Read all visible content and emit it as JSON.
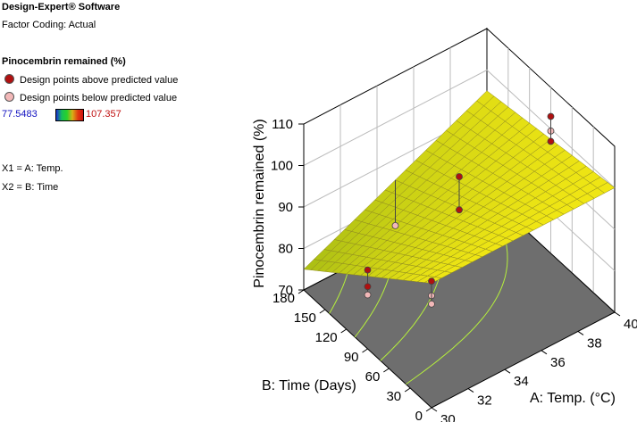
{
  "info": {
    "software": "Design-Expert® Software",
    "factor_coding": "Factor Coding: Actual",
    "response": "Pinocembrin remained (%)",
    "legend_above": "Design points above predicted value",
    "legend_below": "Design points below predicted value",
    "color_min": "77.5483",
    "color_max": "107.357",
    "x1": "X1 = A: Temp.",
    "x2": "X2 = B: Time"
  },
  "colors": {
    "above_point": "#b01010",
    "below_point": "#f2b8b8",
    "surface": "#e3e31a",
    "floor": "#6e6e6e",
    "contour": "#b6f03c"
  },
  "chart_data": {
    "type": "surface3d",
    "zlabel": "Pinocembrin remained (%)",
    "xlabel": "A: Temp. (°C)",
    "ylabel": "B: Time (Days)",
    "x_ticks": [
      "30",
      "32",
      "34",
      "36",
      "38",
      "40"
    ],
    "y_ticks": [
      "0",
      "30",
      "60",
      "90",
      "120",
      "150",
      "180"
    ],
    "z_ticks": [
      "70",
      "80",
      "90",
      "100",
      "110"
    ],
    "xlim": [
      30,
      40
    ],
    "ylim": [
      0,
      180
    ],
    "zlim": [
      70,
      110
    ],
    "surface_corners": [
      {
        "temp": 30,
        "time": 0,
        "value": 100
      },
      {
        "temp": 40,
        "time": 0,
        "value": 100
      },
      {
        "temp": 40,
        "time": 180,
        "value": 95
      },
      {
        "temp": 30,
        "time": 180,
        "value": 75
      }
    ],
    "design_points_above": [
      {
        "temp": 30,
        "time": 0,
        "value": 100.5
      },
      {
        "temp": 35,
        "time": 90,
        "value": 100
      },
      {
        "temp": 35,
        "time": 90,
        "value": 92
      },
      {
        "temp": 40,
        "time": 90,
        "value": 103
      },
      {
        "temp": 40,
        "time": 90,
        "value": 97
      },
      {
        "temp": 30,
        "time": 90,
        "value": 85
      },
      {
        "temp": 30,
        "time": 90,
        "value": 89
      }
    ],
    "design_points_below": [
      {
        "temp": 30,
        "time": 0,
        "value": 97
      },
      {
        "temp": 30,
        "time": 0,
        "value": 95
      },
      {
        "temp": 30,
        "time": 90,
        "value": 83
      },
      {
        "temp": 35,
        "time": 180,
        "value": 74
      },
      {
        "temp": 40,
        "time": 90,
        "value": 99.5
      }
    ]
  }
}
